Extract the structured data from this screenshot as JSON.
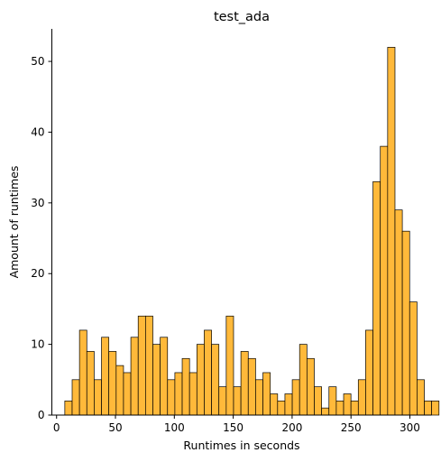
{
  "chart_data": {
    "type": "bar",
    "title": "test_ada",
    "xlabel": "Runtimes in seconds",
    "ylabel": "Amount of runtimes",
    "xlim": [
      -4,
      318
    ],
    "ylim": [
      0,
      54.6
    ],
    "xticks": [
      0,
      50,
      100,
      150,
      200,
      250,
      300
    ],
    "yticks": [
      0,
      10,
      20,
      30,
      40,
      50
    ],
    "grid": false,
    "bin_start": 7,
    "bin_width": 6.23,
    "values": [
      2,
      5,
      12,
      9,
      5,
      11,
      9,
      7,
      6,
      11,
      14,
      14,
      10,
      11,
      5,
      6,
      8,
      6,
      10,
      12,
      10,
      4,
      14,
      4,
      9,
      8,
      5,
      6,
      3,
      2,
      3,
      5,
      10,
      8,
      4,
      1,
      4,
      2,
      3,
      2,
      5,
      12,
      33,
      38,
      52,
      29,
      26,
      16,
      5,
      2,
      2
    ],
    "bar_color": "#ffb93a"
  }
}
